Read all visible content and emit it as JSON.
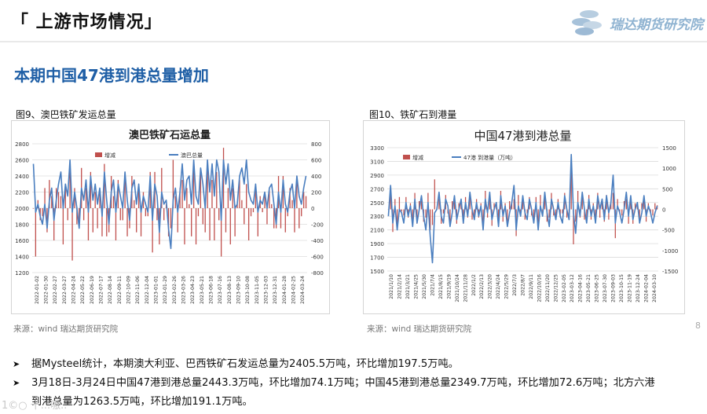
{
  "header": {
    "title": "「 上游市场情况」",
    "logo_text": "瑞达期货研究院"
  },
  "section_title": "本期中国47港到港总量增加",
  "figures": [
    {
      "caption": "图9、澳巴铁矿发运总量",
      "source": "来源：wind   瑞达期货研究院"
    },
    {
      "caption": "图10、铁矿石到港量",
      "source": "来源：wind   瑞达期货研究院"
    }
  ],
  "bullets": [
    {
      "text": "据Mysteel统计，本期澳大利亚、巴西铁矿石发运总量为2405.5万吨，环比增加197.5万吨。"
    },
    {
      "text": "3月18日-3月24日中国47港到港总量2443.3万吨，环比增加74.1万吨；中国45港到港总量2349.7万吨，环比增加72.6万吨；北方六港",
      "text2": "到港总量为1263.5万吨，环比增加191.1万吨。"
    }
  ],
  "page_number": "8",
  "watermark": "1©○ 十...嗷..",
  "colors": {
    "bar": "#c0504d",
    "line": "#4a7ebf",
    "title_blue": "#1f5fa6",
    "logo": "#8fb3d1"
  },
  "chart_data": [
    {
      "type": "bar+line",
      "title": "澳巴铁矿石运总量",
      "legend": [
        "增减",
        "澳巴总量"
      ],
      "legend_position": "top",
      "y_left": {
        "min": 1200,
        "max": 2800,
        "ticks": [
          1200,
          1400,
          1600,
          1800,
          2000,
          2200,
          2400,
          2600,
          2800
        ]
      },
      "y_right": {
        "min": -800,
        "max": 800,
        "ticks": [
          -800,
          -600,
          -400,
          -200,
          0,
          200,
          400,
          600,
          800
        ]
      },
      "x_labels": [
        "2022-01-02",
        "2022-01-30",
        "2022-02-27",
        "2022-03-27",
        "2022-04-24",
        "2022-05-22",
        "2022-06-19",
        "2022-07-17",
        "2022-08-14",
        "2022-09-11",
        "2022-10-09",
        "2022-11-06",
        "2022-12-04",
        "2023-01-01",
        "2023-01-29",
        "2023-02-26",
        "2023-03-26",
        "2023-04-23",
        "2023-05-21",
        "2023-06-18",
        "2023-07-16",
        "2023-08-13",
        "2023-09-10",
        "2023-10-08",
        "2023-11-05",
        "2023-12-03",
        "2023-12-31",
        "2024-01-28",
        "2024-02-25",
        "2024-03-24"
      ],
      "series": [
        {
          "name": "澳巴总量",
          "axis": "left",
          "values": [
            2550,
            1950,
            2050,
            1900,
            1800,
            2050,
            1750,
            2100,
            2250,
            1850,
            2100,
            2300,
            2450,
            2000,
            2300,
            2150,
            2600,
            1950,
            2200,
            2000,
            1750,
            2250,
            2100,
            2350,
            1950,
            2400,
            2100,
            2300,
            2050,
            2250,
            1900,
            2450,
            2100,
            1800,
            2200,
            2350,
            1950,
            2300,
            2150,
            2000,
            2450,
            2100,
            1850,
            2250,
            2350,
            2050,
            2300,
            1950,
            2150,
            2050,
            1950,
            2400,
            1850,
            2300,
            2150,
            1700,
            2200,
            2050,
            2100,
            1750,
            1500,
            2100,
            2250,
            1950,
            2200,
            2550,
            2100,
            2350,
            2400,
            2050,
            2600,
            2150,
            2050,
            2500,
            2300,
            2000,
            2600,
            2200,
            2550,
            2150,
            2600,
            2450,
            1850,
            2600,
            2300,
            2550,
            2100,
            2350,
            2000,
            2050,
            2400,
            2500,
            2300,
            2600,
            2200,
            2100,
            2050,
            2300,
            1950,
            2100,
            2050,
            2200,
            2000,
            2250,
            2300,
            2050,
            1800,
            2200,
            1950,
            2350,
            2050,
            1950,
            2200,
            2300,
            2000,
            2400,
            2150,
            2050,
            2250,
            2400
          ]
        },
        {
          "name": "增减",
          "axis": "right",
          "values": [
            0,
            -600,
            100,
            -150,
            -100,
            250,
            -300,
            350,
            150,
            -400,
            250,
            200,
            150,
            -450,
            300,
            -150,
            450,
            -650,
            250,
            -200,
            -250,
            500,
            -150,
            250,
            -400,
            450,
            -300,
            200,
            -250,
            200,
            -350,
            550,
            -350,
            -300,
            400,
            150,
            -400,
            350,
            -150,
            -150,
            450,
            -350,
            -250,
            400,
            100,
            -300,
            250,
            -350,
            200,
            -100,
            -100,
            450,
            -550,
            450,
            -150,
            -450,
            500,
            -150,
            50,
            -350,
            -250,
            600,
            150,
            -300,
            250,
            350,
            -450,
            250,
            50,
            -350,
            550,
            -450,
            -100,
            450,
            -200,
            -300,
            600,
            -400,
            350,
            -400,
            450,
            -150,
            -600,
            750,
            -300,
            250,
            -450,
            250,
            -350,
            50,
            350,
            100,
            -200,
            300,
            -400,
            -100,
            -50,
            250,
            -350,
            150,
            -50,
            150,
            -200,
            250,
            50,
            -250,
            -250,
            400,
            -250,
            400,
            -300,
            -100,
            250,
            100,
            -300,
            400,
            -250,
            -100,
            200,
            150
          ]
        }
      ]
    },
    {
      "type": "bar+line",
      "title": "中国47港到港总量",
      "legend": [
        "增减",
        "47港 到港量（万吨）"
      ],
      "legend_position": "top",
      "y_left": {
        "min": 1500,
        "max": 3300,
        "ticks": [
          1500,
          1700,
          1900,
          2100,
          2300,
          2500,
          2700,
          2900,
          3100,
          3300
        ]
      },
      "y_right": {
        "min": -1500,
        "max": 1500,
        "ticks": [
          -1500,
          -1000,
          -500,
          0,
          500,
          1000,
          1500
        ]
      },
      "x_labels": [
        "2021/1/10",
        "2021/2/14",
        "2021/3/21",
        "2021/4/25",
        "2021/5/30",
        "2021/7/4",
        "2021/8/15",
        "2021/9/19",
        "2021/10/24",
        "2021/11/28",
        "2022/1/2",
        "2022/2/13",
        "2022/3/20",
        "2022/4/24",
        "2022/5/29",
        "2022/7/3",
        "2022/8/7",
        "2022/9/11",
        "2022/10/16",
        "2022/11/20",
        "2022/12/25",
        "2023-02-05",
        "2023-03-12",
        "2023-04-16",
        "2023-05-21",
        "2023-06-25",
        "2023-07-30",
        "2023-09-03",
        "2023-10-15",
        "2023-11-19",
        "2023-12-24",
        "2024-02-04",
        "2024-03-10"
      ],
      "series": [
        {
          "name": "47港 到港量（万吨）",
          "axis": "left",
          "values": [
            2300,
            2750,
            2200,
            2450,
            2100,
            2400,
            2350,
            2200,
            2500,
            2300,
            2450,
            2150,
            2550,
            2200,
            2400,
            2600,
            2300,
            2100,
            2500,
            2000,
            1620,
            2350,
            2400,
            2650,
            2300,
            2200,
            2550,
            2450,
            2150,
            2350,
            2600,
            2250,
            2400,
            2550,
            2200,
            2500,
            2300,
            2650,
            2400,
            2250,
            2500,
            2300,
            2450,
            2100,
            2550,
            2350,
            2650,
            2250,
            2400,
            2500,
            2150,
            2600,
            2300,
            2450,
            2150,
            2350,
            2500,
            2750,
            2100,
            2450,
            2300,
            2600,
            2350,
            2250,
            2550,
            2400,
            2200,
            2500,
            2100,
            2450,
            2300,
            2650,
            2350,
            2150,
            2550,
            2400,
            2250,
            2500,
            2300,
            2200,
            2600,
            2400,
            2250,
            3200,
            2350,
            2050,
            2500,
            2300,
            2650,
            2400,
            2200,
            2550,
            2300,
            2450,
            2200,
            2600,
            2400,
            2550,
            2250,
            2600,
            2350,
            2500,
            2900,
            2200,
            2450,
            2350,
            2200,
            2400,
            2650,
            2300,
            2600,
            2250,
            2400,
            2500,
            2200,
            2350,
            2600,
            2300,
            2450,
            2350,
            2200,
            2350,
            2450
          ]
        },
        {
          "name": "增减",
          "axis": "right",
          "values": [
            0,
            450,
            -550,
            250,
            -350,
            300,
            -50,
            -150,
            300,
            -200,
            150,
            -300,
            400,
            -350,
            200,
            200,
            -300,
            -200,
            400,
            -500,
            -380,
            730,
            50,
            250,
            -350,
            -100,
            350,
            -100,
            -300,
            200,
            250,
            -350,
            150,
            150,
            -350,
            300,
            -200,
            350,
            -250,
            -150,
            250,
            -200,
            150,
            -350,
            450,
            -200,
            300,
            -400,
            150,
            100,
            -350,
            450,
            -300,
            150,
            -300,
            200,
            150,
            250,
            -650,
            350,
            -150,
            300,
            -250,
            -100,
            300,
            -150,
            -200,
            300,
            -400,
            350,
            -150,
            350,
            -300,
            -200,
            400,
            -150,
            -150,
            250,
            -200,
            -100,
            400,
            -200,
            -150,
            950,
            -850,
            -300,
            450,
            -200,
            350,
            -250,
            -200,
            350,
            -250,
            150,
            -250,
            400,
            -200,
            150,
            -300,
            350,
            -250,
            150,
            400,
            -700,
            250,
            -100,
            -150,
            200,
            250,
            -350,
            300,
            -350,
            150,
            100,
            -300,
            150,
            250,
            -300,
            150,
            -100,
            -150,
            150,
            100
          ]
        }
      ]
    }
  ]
}
